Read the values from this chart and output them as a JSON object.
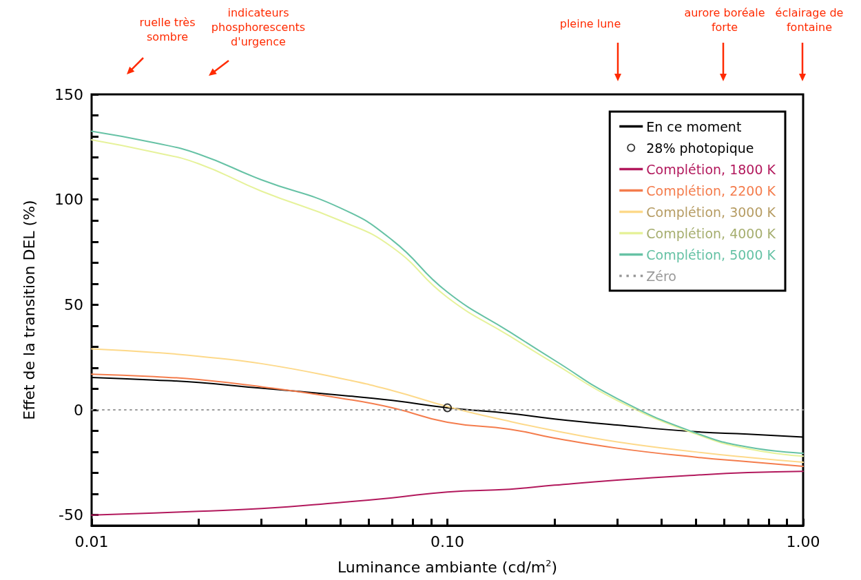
{
  "chart_data": {
    "type": "line",
    "xlabel": "Luminance ambiante (cd/m$^{2}$)",
    "ylabel": "Effet de la transition DEL (%)",
    "log": "x",
    "x": [
      0.01,
      0.015,
      0.02,
      0.03,
      0.05,
      0.07,
      0.1,
      0.15,
      0.2,
      0.3,
      0.5,
      0.7,
      1.0
    ],
    "xlim": [
      0.01,
      1.0
    ],
    "xticks": [
      {
        "value": 0.01,
        "label": "0.01"
      },
      {
        "value": 0.02,
        "label": null
      },
      {
        "value": 0.03,
        "label": null
      },
      {
        "value": 0.04,
        "label": null
      },
      {
        "value": 0.05,
        "label": null
      },
      {
        "value": 0.06,
        "label": null
      },
      {
        "value": 0.07,
        "label": null
      },
      {
        "value": 0.08,
        "label": null
      },
      {
        "value": 0.09,
        "label": null
      },
      {
        "value": 0.1,
        "label": "0.10"
      },
      {
        "value": 0.2,
        "label": null
      },
      {
        "value": 0.3,
        "label": null
      },
      {
        "value": 0.4,
        "label": null
      },
      {
        "value": 0.5,
        "label": null
      },
      {
        "value": 0.6,
        "label": null
      },
      {
        "value": 0.7,
        "label": null
      },
      {
        "value": 0.8,
        "label": null
      },
      {
        "value": 0.9,
        "label": null
      },
      {
        "value": 1.0,
        "label": "1.00"
      }
    ],
    "ylim": [
      -55,
      150
    ],
    "yticks": [
      -50,
      {
        "value": -40,
        "label": null
      },
      {
        "value": -30,
        "label": null
      },
      {
        "value": -20,
        "label": null
      },
      {
        "value": -10,
        "label": null
      },
      0,
      {
        "value": 10,
        "label": null
      },
      {
        "value": 20,
        "label": null
      },
      {
        "value": 30,
        "label": null
      },
      {
        "value": 40,
        "label": null
      },
      50,
      {
        "value": 60,
        "label": null
      },
      {
        "value": 70,
        "label": null
      },
      {
        "value": 80,
        "label": null
      },
      {
        "value": 90,
        "label": null
      },
      100,
      {
        "value": 110,
        "label": null
      },
      {
        "value": 120,
        "label": null
      },
      {
        "value": 130,
        "label": null
      },
      {
        "value": 140,
        "label": null
      },
      150
    ],
    "grid": false,
    "legend": "top right",
    "marker": "none",
    "series": [
      {
        "name": "En ce moment",
        "color": "#000000",
        "values": [
          15.4,
          14.2,
          13,
          10.3,
          7,
          4.5,
          1,
          -1.7,
          -4.3,
          -7.2,
          -10.4,
          -11.5,
          -12.9
        ]
      },
      {
        "name": "28% photopique",
        "type": "scatter",
        "marker": "circle",
        "color": "#000000",
        "x": [
          0.1
        ],
        "values": [
          1
        ]
      },
      {
        "name": "Complétion, 1800 K",
        "color": "#b2185c",
        "values": [
          -50,
          -49,
          -48.2,
          -46.9,
          -44,
          -41.8,
          -39,
          -37.7,
          -35.8,
          -33.4,
          -31,
          -29.8,
          -29.2
        ]
      },
      {
        "name": "Complétion, 2200 K",
        "color": "#f47c4c",
        "values": [
          17,
          15.8,
          14.4,
          11,
          5.6,
          1,
          -5.9,
          -9.2,
          -13.4,
          -18.2,
          -22.5,
          -24.6,
          -26.8
        ]
      },
      {
        "name": "Complétion, 3000 K",
        "color": "#fdd98a",
        "values": [
          29,
          27.3,
          25.5,
          22,
          15,
          9.2,
          1.6,
          -5.5,
          -9.9,
          -15.2,
          -20,
          -22.6,
          -24.9
        ]
      },
      {
        "name": "Complétion, 4000 K",
        "color": "#e6f29a",
        "values": [
          128.4,
          122.5,
          117,
          104,
          90,
          77.3,
          53.5,
          35,
          22,
          4.5,
          -11.5,
          -18.5,
          -22
        ]
      },
      {
        "name": "Complétion, 5000 K",
        "color": "#66c2a5",
        "values": [
          132.5,
          127,
          121.6,
          109.4,
          96,
          80.7,
          56,
          37,
          23.6,
          5.4,
          -11,
          -17.7,
          -20.6
        ]
      },
      {
        "name": "Zéro",
        "color": "#999999",
        "line_style": "dotted",
        "x": [
          0.01,
          1.0
        ],
        "values": [
          0,
          0
        ]
      }
    ],
    "annotations": [
      "ruelle très\nsombre",
      "indicateurs\nphosphorescents\nd'urgence",
      "pleine lune",
      "aurore boréale\nforte",
      "éclairage de\nfontaine"
    ]
  }
}
